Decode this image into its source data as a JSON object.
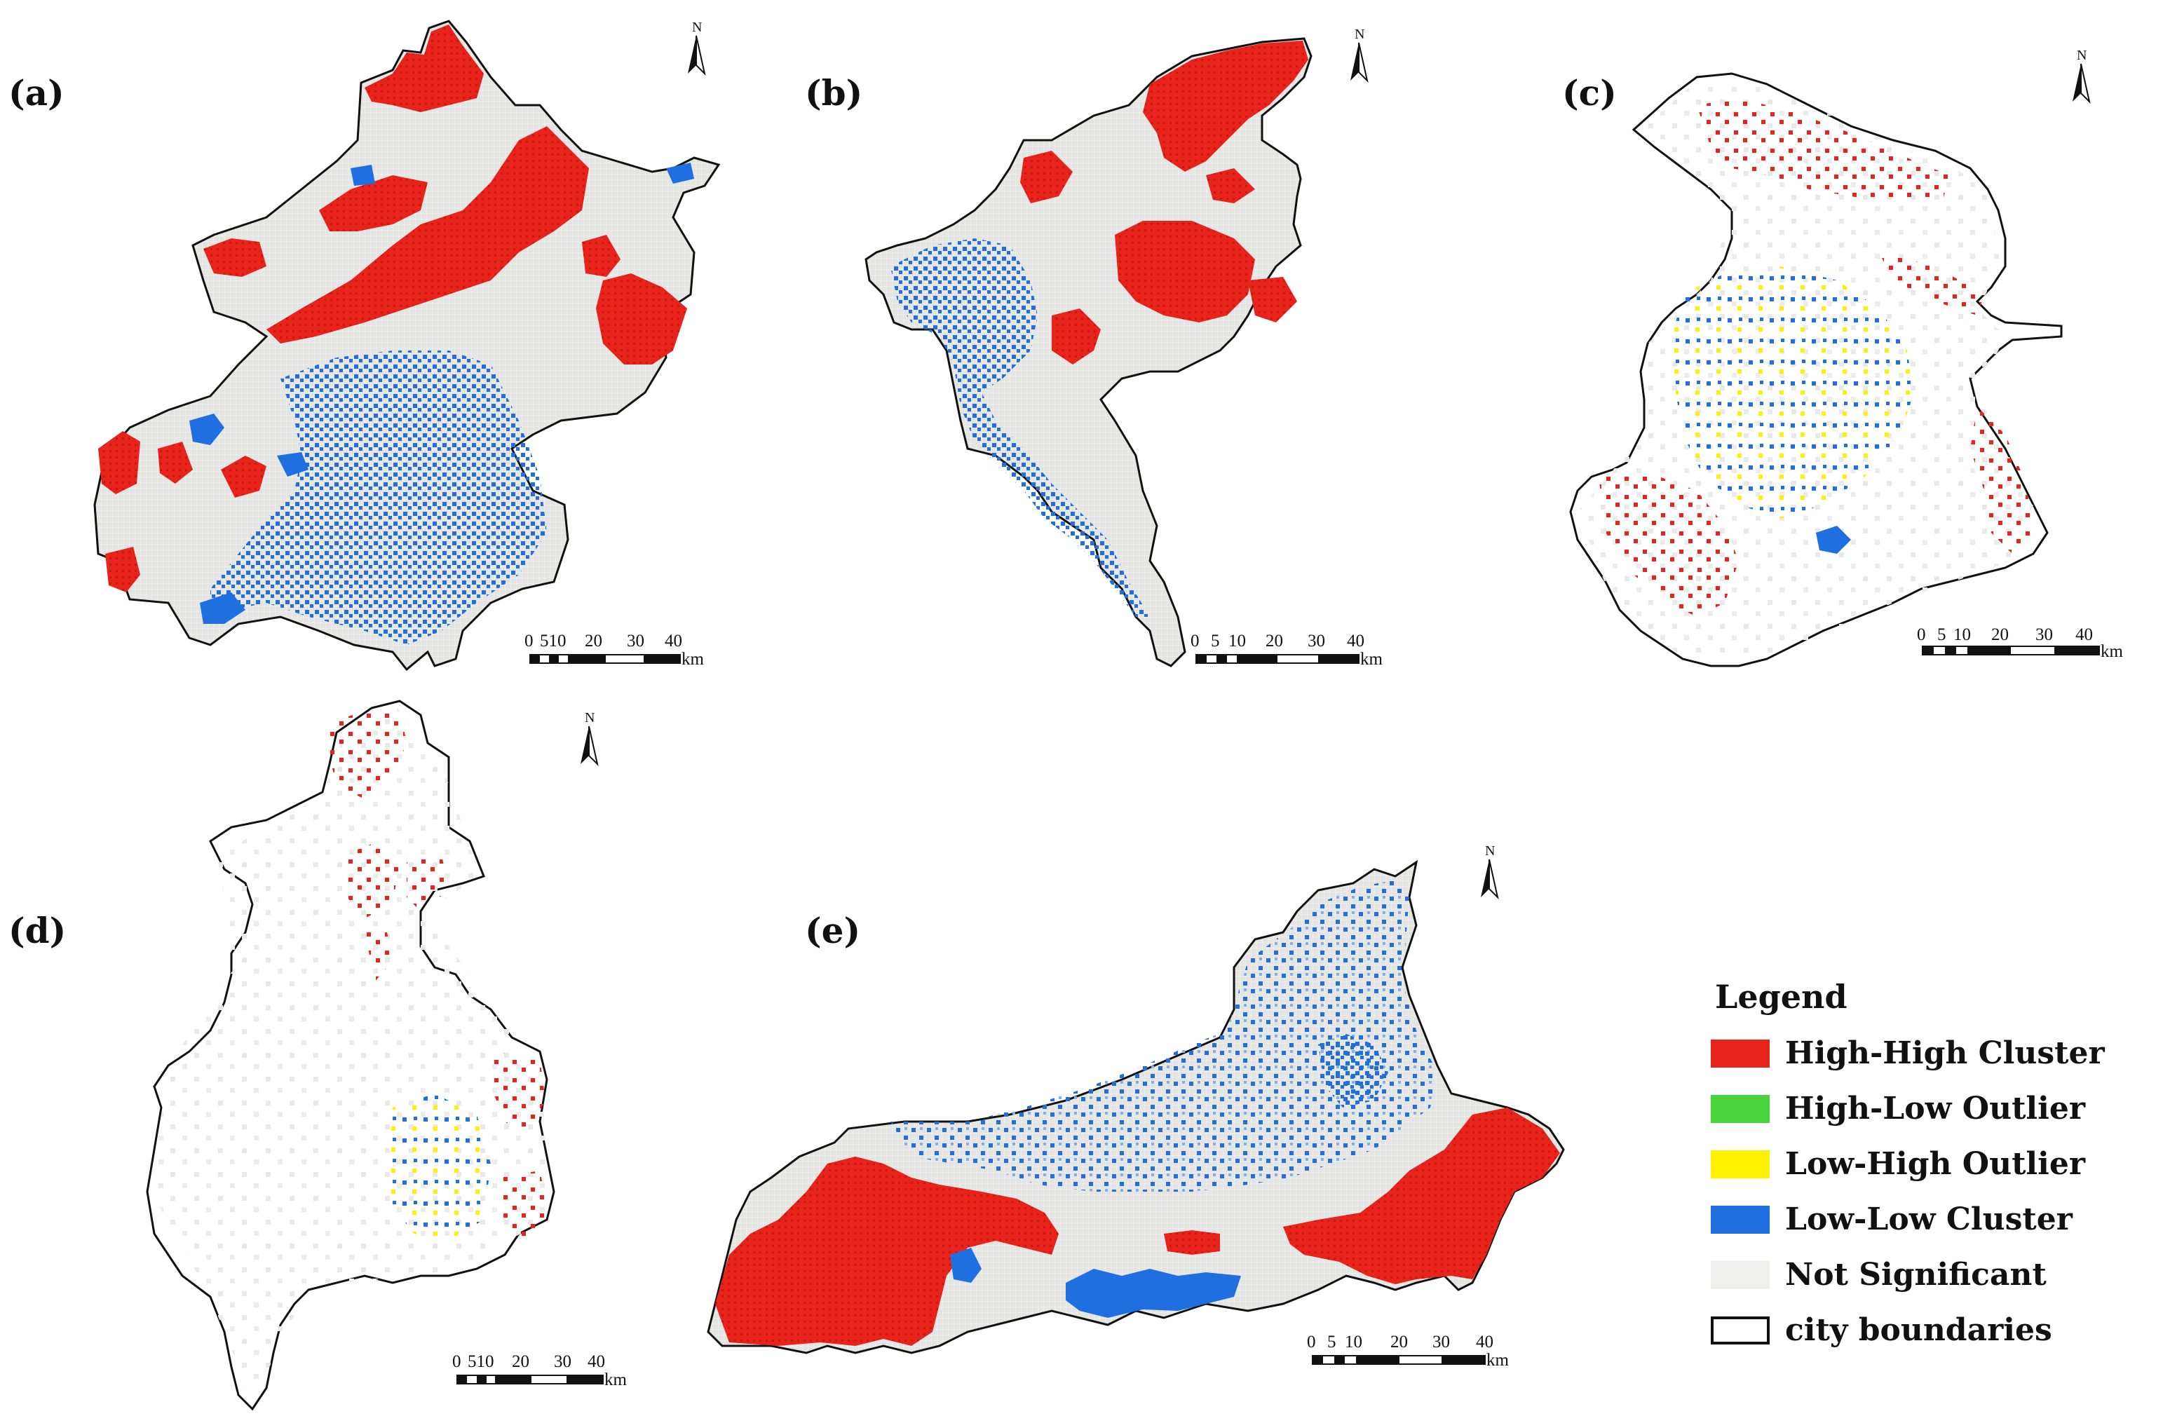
{
  "colors": {
    "high_high": "#e8231c",
    "high_low": "#48d23c",
    "low_high": "#fff200",
    "low_low": "#1f6fe0",
    "not_significant": "#e6e6e4",
    "boundary": "#111111"
  },
  "panels": [
    {
      "id": "a",
      "label": "(a)"
    },
    {
      "id": "b",
      "label": "(b)"
    },
    {
      "id": "c",
      "label": "(c)"
    },
    {
      "id": "d",
      "label": "(d)"
    },
    {
      "id": "e",
      "label": "(e)"
    }
  ],
  "north_arrow": {
    "letter": "N"
  },
  "scale_bar": {
    "labels_compact": [
      "0",
      "510",
      "20",
      "30",
      "40"
    ],
    "labels_spaced": [
      "0",
      "5",
      "10",
      "20",
      "30",
      "40"
    ],
    "unit": "km"
  },
  "legend": {
    "title": "Legend",
    "items": [
      {
        "label": "High-High Cluster",
        "color": "#e8231c",
        "icon": "filled-swatch"
      },
      {
        "label": "High-Low Outlier",
        "color": "#48d23c",
        "icon": "filled-swatch"
      },
      {
        "label": "Low-High Outlier",
        "color": "#fff200",
        "icon": "filled-swatch"
      },
      {
        "label": "Low-Low Cluster",
        "color": "#1f6fe0",
        "icon": "filled-swatch"
      },
      {
        "label": "Not Significant",
        "color": "#efefed",
        "icon": "filled-swatch"
      },
      {
        "label": "city boundaries",
        "color": "#ffffff",
        "icon": "outline-swatch"
      }
    ]
  }
}
